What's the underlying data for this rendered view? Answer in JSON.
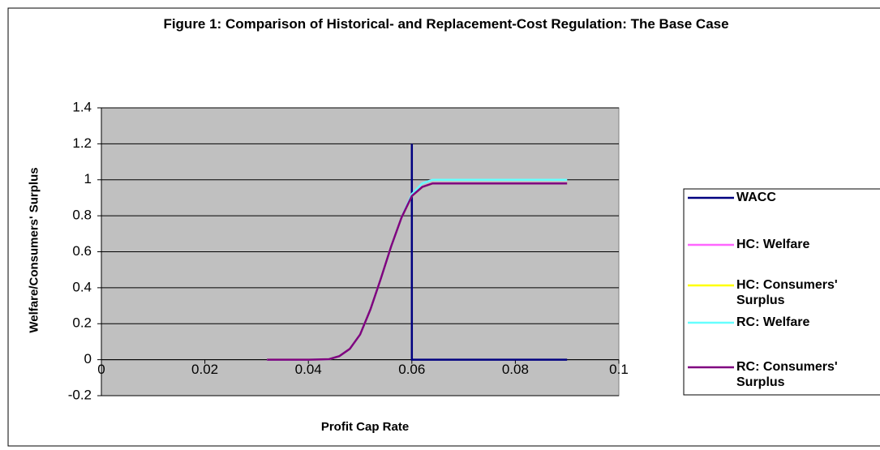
{
  "chart_data": {
    "type": "line",
    "title": "Figure 1: Comparison of Historical- and Replacement-Cost Regulation: The Base Case",
    "xlabel": "Profit Cap Rate",
    "ylabel": "Welfare/Consumers' Surplus",
    "xlim": [
      0,
      0.1
    ],
    "xticks": [
      0,
      0.02,
      0.04,
      0.06,
      0.08,
      0.1
    ],
    "ylim": [
      -0.2,
      1.4
    ],
    "yticks": [
      -0.2,
      0,
      0.2,
      0.4,
      0.6,
      0.8,
      1,
      1.2,
      1.4
    ],
    "grid": true,
    "legend": "right",
    "series": [
      {
        "name": "WACC",
        "color": "#000080",
        "x": [
          0.06,
          0.06,
          0.09
        ],
        "values": [
          1.2,
          0,
          0
        ]
      },
      {
        "name": "HC: Welfare",
        "color": "#ff66ff",
        "x": [
          0.032,
          0.036,
          0.04,
          0.044,
          0.046,
          0.048,
          0.05,
          0.052,
          0.054,
          0.056,
          0.058,
          0.06,
          0.062,
          0.064,
          0.066,
          0.07,
          0.08,
          0.09
        ],
        "values": [
          0,
          0,
          0,
          0.003,
          0.02,
          0.06,
          0.14,
          0.28,
          0.45,
          0.63,
          0.79,
          0.92,
          0.98,
          1,
          1,
          1,
          1,
          1
        ]
      },
      {
        "name": "HC: Consumers' Surplus",
        "color": "#ffff00",
        "x": [
          0.032,
          0.036,
          0.04,
          0.044,
          0.046,
          0.048,
          0.05,
          0.052,
          0.054,
          0.056,
          0.058,
          0.06,
          0.062,
          0.064,
          0.066,
          0.07,
          0.08,
          0.09
        ],
        "values": [
          0,
          0,
          0,
          0.003,
          0.02,
          0.06,
          0.14,
          0.28,
          0.45,
          0.63,
          0.79,
          0.91,
          0.96,
          0.98,
          0.98,
          0.98,
          0.98,
          0.98
        ]
      },
      {
        "name": "RC: Welfare",
        "color": "#66ffff",
        "x": [
          0.032,
          0.036,
          0.04,
          0.044,
          0.046,
          0.048,
          0.05,
          0.052,
          0.054,
          0.056,
          0.058,
          0.06,
          0.062,
          0.064,
          0.066,
          0.07,
          0.08,
          0.09
        ],
        "values": [
          0,
          0,
          0,
          0.003,
          0.02,
          0.06,
          0.14,
          0.28,
          0.45,
          0.63,
          0.79,
          0.92,
          0.98,
          1,
          1,
          1,
          1,
          1
        ]
      },
      {
        "name": "RC: Consumers' Surplus",
        "color": "#800080",
        "x": [
          0.032,
          0.036,
          0.04,
          0.044,
          0.046,
          0.048,
          0.05,
          0.052,
          0.054,
          0.056,
          0.058,
          0.06,
          0.062,
          0.064,
          0.066,
          0.07,
          0.08,
          0.09
        ],
        "values": [
          0,
          0,
          0,
          0.003,
          0.02,
          0.06,
          0.14,
          0.28,
          0.45,
          0.63,
          0.79,
          0.91,
          0.96,
          0.98,
          0.98,
          0.98,
          0.98,
          0.98
        ]
      }
    ]
  }
}
